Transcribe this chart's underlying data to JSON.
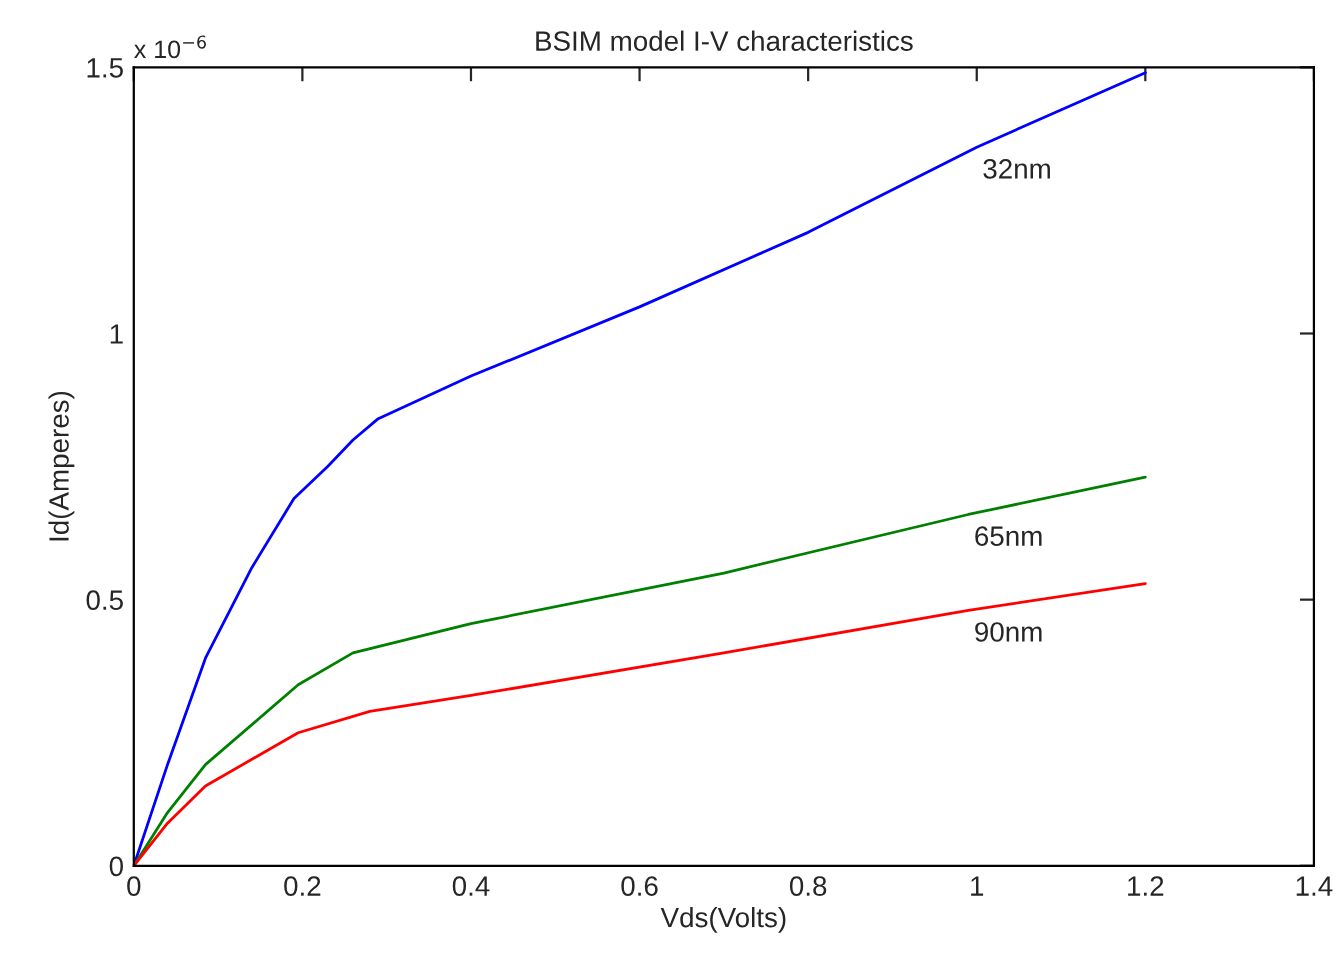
{
  "chart_data": {
    "type": "line",
    "title": "BSIM model I-V characteristics",
    "xlabel": "Vds(Volts)",
    "ylabel": "Id(Amperes)",
    "xlim": [
      0,
      1.4
    ],
    "xticks": [
      0,
      0.2,
      0.4,
      0.6,
      0.8,
      1,
      1.2,
      1.4
    ],
    "ylim": [
      0,
      1.5
    ],
    "yticks": [
      0,
      0.5,
      1,
      1.5
    ],
    "grid": false,
    "legend": false,
    "series": [
      {
        "name": "32nm",
        "color": "#0000ff",
        "x": [
          0,
          0.04,
          0.085,
          0.14,
          0.19,
          0.23,
          0.26,
          0.29,
          0.4,
          0.6,
          0.8,
          1.0,
          1.2
        ],
        "values": [
          0,
          0.19,
          0.39,
          0.56,
          0.69,
          0.75,
          0.8,
          0.84,
          0.92,
          1.05,
          1.19,
          1.35,
          1.49
        ]
      },
      {
        "name": "65nm",
        "color": "#008000",
        "x": [
          0,
          0.04,
          0.085,
          0.195,
          0.26,
          0.4,
          0.7,
          0.99,
          1.2
        ],
        "values": [
          0,
          0.1,
          0.19,
          0.34,
          0.4,
          0.455,
          0.55,
          0.66,
          0.73
        ]
      },
      {
        "name": "90nm",
        "color": "#ff0000",
        "x": [
          0,
          0.04,
          0.085,
          0.195,
          0.28,
          0.4,
          0.7,
          0.99,
          1.2
        ],
        "values": [
          0,
          0.08,
          0.15,
          0.25,
          0.29,
          0.32,
          0.4,
          0.48,
          0.53
        ]
      }
    ],
    "annotations": [
      "x 10$^{−6}$"
    ]
  }
}
